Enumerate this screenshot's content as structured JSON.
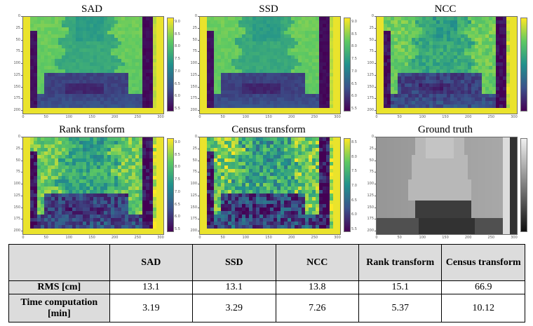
{
  "figure": {
    "panels": [
      {
        "title": "SAD",
        "kind": "disparity",
        "noise": "low",
        "colorbar_ticks": [
          "9.0",
          "8.5",
          "8.0",
          "7.5",
          "7.0",
          "6.5",
          "6.0",
          "5.5"
        ]
      },
      {
        "title": "SSD",
        "kind": "disparity",
        "noise": "low",
        "colorbar_ticks": [
          "9.0",
          "8.5",
          "8.0",
          "7.5",
          "7.0",
          "6.5",
          "6.0",
          "5.5"
        ]
      },
      {
        "title": "NCC",
        "kind": "disparity",
        "noise": "medium",
        "colorbar_ticks": []
      },
      {
        "title": "Rank transform",
        "kind": "disparity",
        "noise": "high",
        "colorbar_ticks": [
          "9.0",
          "8.5",
          "8.0",
          "7.5",
          "7.0",
          "6.5",
          "6.0",
          "5.5"
        ]
      },
      {
        "title": "Census transform",
        "kind": "disparity",
        "noise": "very-high",
        "colorbar_ticks": [
          "8.5",
          "8.0",
          "7.5",
          "7.0",
          "6.5",
          "6.0",
          "5.5"
        ]
      },
      {
        "title": "Ground truth",
        "kind": "ground-truth",
        "noise": "none",
        "colorbar_ticks": []
      }
    ],
    "y_ticks": [
      "0",
      "25",
      "50",
      "75",
      "100",
      "125",
      "150",
      "175",
      "200"
    ],
    "x_ticks": [
      "0",
      "50",
      "100",
      "150",
      "200",
      "250",
      "300"
    ],
    "colormap": [
      "#440154",
      "#3b528b",
      "#21918c",
      "#5ec962",
      "#fde725"
    ]
  },
  "table": {
    "headers": [
      "",
      "SAD",
      "SSD",
      "NCC",
      "Rank transform",
      "Census transform"
    ],
    "rows": [
      {
        "label": "RMS [cm]",
        "values": [
          "13.1",
          "13.1",
          "13.8",
          "15.1",
          "66.9"
        ]
      },
      {
        "label": "Time computation [min]",
        "values": [
          "3.19",
          "3.29",
          "7.26",
          "5.37",
          "10.12"
        ]
      }
    ]
  }
}
